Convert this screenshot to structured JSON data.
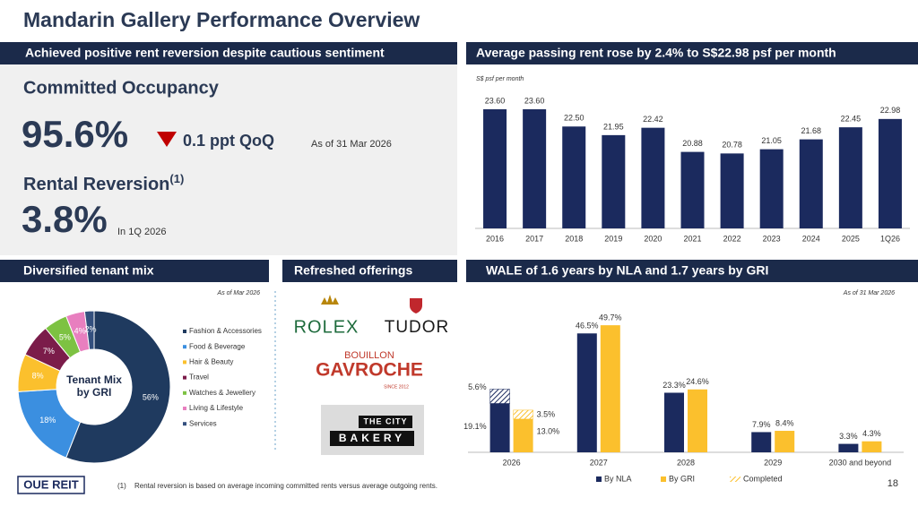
{
  "title": "Mandarin Gallery Performance Overview",
  "occupancy": {
    "header": "Achieved positive rent reversion despite cautious sentiment",
    "committed_label": "Committed Occupancy",
    "committed_value": "95.6%",
    "change": "0.1 ppt QoQ",
    "as_of": "As of 31 Mar 2026",
    "reversion_label": "Rental Reversion",
    "reversion_note_mark": "(1)",
    "reversion_value": "3.8%",
    "reversion_period": "In 1Q 2026"
  },
  "offerings": {
    "header": "Refreshed offerings",
    "logos": [
      "ROLEX",
      "TUDOR",
      "BOUILLON",
      "GAVROCHE",
      "SINCE 2012",
      "THE CITY",
      "BAKERY"
    ]
  },
  "footer": {
    "logo": "OUE REIT",
    "footnote_mark": "(1)",
    "footnote": "Rental reversion is based on average incoming committed rents versus average outgoing rents.",
    "page": "18"
  },
  "chart_data": [
    {
      "type": "bar",
      "title": "Average passing rent rose by 2.4% to S$22.98 psf per month",
      "ylabel": "S$ psf per month",
      "categories": [
        "2016",
        "2017",
        "2018",
        "2019",
        "2020",
        "2021",
        "2022",
        "2023",
        "2024",
        "2025",
        "1Q26"
      ],
      "values": [
        23.6,
        23.6,
        22.5,
        21.95,
        22.42,
        20.88,
        20.78,
        21.05,
        21.68,
        22.45,
        22.98
      ],
      "value_labels": [
        "23.60",
        "23.60",
        "22.50",
        "21.95",
        "22.42",
        "20.88",
        "20.78",
        "21.05",
        "21.68",
        "22.45",
        "22.98"
      ],
      "color": "#1b2a5e",
      "ylim": [
        16,
        24
      ]
    },
    {
      "type": "pie",
      "title": "Diversified tenant mix",
      "note": "As of Mar 2026",
      "center_label": [
        "Tenant Mix",
        "by GRI"
      ],
      "categories": [
        "Fashion & Accessories",
        "Food & Beverage",
        "Hair & Beauty",
        "Travel",
        "Watches & Jewellery",
        "Living & Lifestyle",
        "Services"
      ],
      "values": [
        56,
        18,
        8,
        7,
        5,
        4,
        2
      ],
      "value_labels": [
        "56%",
        "18%",
        "8%",
        "7%",
        "5%",
        "4%",
        "2%"
      ],
      "colors": [
        "#1f3a5f",
        "#3b8fe0",
        "#fbc02d",
        "#7b1c4a",
        "#7dc242",
        "#e87fbf",
        "#34507e"
      ],
      "legend": "right"
    },
    {
      "type": "bar",
      "title": "WALE of 1.6 years by NLA and 1.7 years by GRI",
      "note": "As of 31 Mar 2026",
      "categories": [
        "2026",
        "2027",
        "2028",
        "2029",
        "2030 and beyond"
      ],
      "series": [
        {
          "name": "By NLA",
          "color": "#1b2a5e",
          "values": [
            19.1,
            46.5,
            23.3,
            7.9,
            3.3
          ],
          "value_labels": [
            "19.1%",
            "46.5%",
            "23.3%",
            "7.9%",
            "3.3%"
          ]
        },
        {
          "name": "By GRI",
          "color": "#fbc02d",
          "values": [
            13.0,
            49.7,
            24.6,
            8.4,
            4.3
          ],
          "value_labels": [
            "13.0%",
            "49.7%",
            "24.6%",
            "8.4%",
            "4.3%"
          ]
        }
      ],
      "completed": {
        "name": "Completed",
        "by_nla": [
          5.6,
          null,
          null,
          null,
          null
        ],
        "by_gri": [
          3.5,
          null,
          null,
          null,
          null
        ],
        "nla_labels": [
          "5.6%",
          null,
          null,
          null,
          null
        ],
        "gri_labels": [
          "3.5%",
          null,
          null,
          null,
          null
        ]
      },
      "ylim": [
        0,
        55
      ],
      "legend": "bottom"
    }
  ]
}
